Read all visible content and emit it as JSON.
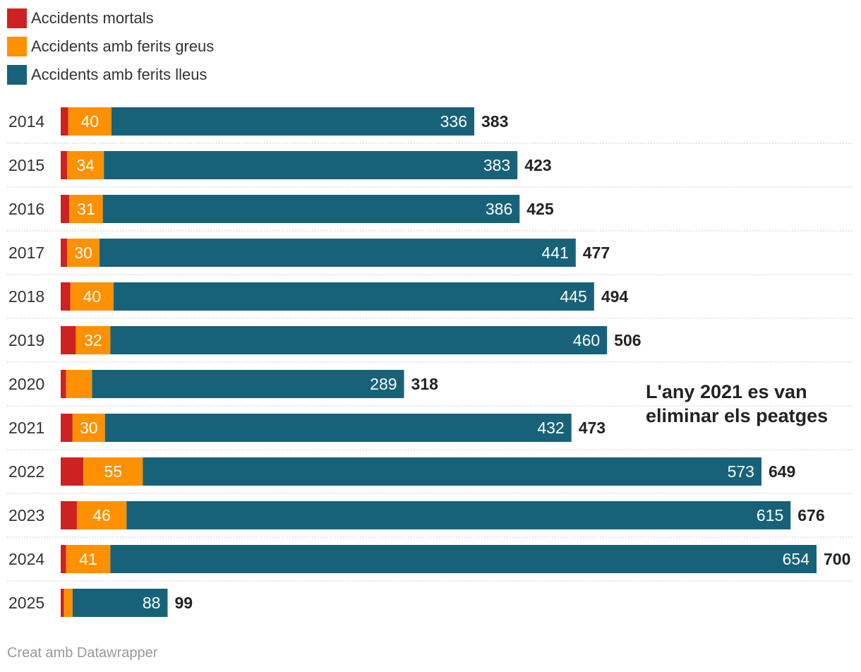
{
  "chart_data": {
    "type": "bar",
    "orientation": "horizontal",
    "stacked": true,
    "categories": [
      "2014",
      "2015",
      "2016",
      "2017",
      "2018",
      "2019",
      "2020",
      "2021",
      "2022",
      "2023",
      "2024",
      "2025"
    ],
    "series": [
      {
        "name": "Accidents mortals",
        "color": "#cc2222",
        "values": [
          7,
          6,
          8,
          6,
          9,
          14,
          5,
          11,
          21,
          15,
          5,
          3
        ],
        "labels": [
          "",
          "",
          "",
          "",
          "",
          "",
          "",
          "",
          "",
          "",
          "",
          ""
        ]
      },
      {
        "name": "Accidents amb ferits greus",
        "color": "#ff9100",
        "values": [
          40,
          34,
          31,
          30,
          40,
          32,
          24,
          30,
          55,
          46,
          41,
          8
        ],
        "labels": [
          "40",
          "34",
          "31",
          "30",
          "40",
          "32",
          "",
          "30",
          "55",
          "46",
          "41",
          ""
        ]
      },
      {
        "name": "Accidents amb ferits lleus",
        "color": "#176279",
        "values": [
          336,
          383,
          386,
          441,
          445,
          460,
          289,
          432,
          573,
          615,
          654,
          88
        ],
        "labels": [
          "336",
          "383",
          "386",
          "441",
          "445",
          "460",
          "289",
          "432",
          "573",
          "615",
          "654",
          "88"
        ]
      }
    ],
    "totals": [
      "383",
      "423",
      "425",
      "477",
      "494",
      "506",
      "318",
      "473",
      "649",
      "676",
      "700",
      "99"
    ],
    "xlim": [
      0,
      700
    ],
    "grid": false,
    "legend_position": "top-left",
    "annotation": [
      "L'any 2021 es van",
      "eliminar els peatges"
    ]
  },
  "credit": "Creat amb Datawrapper"
}
